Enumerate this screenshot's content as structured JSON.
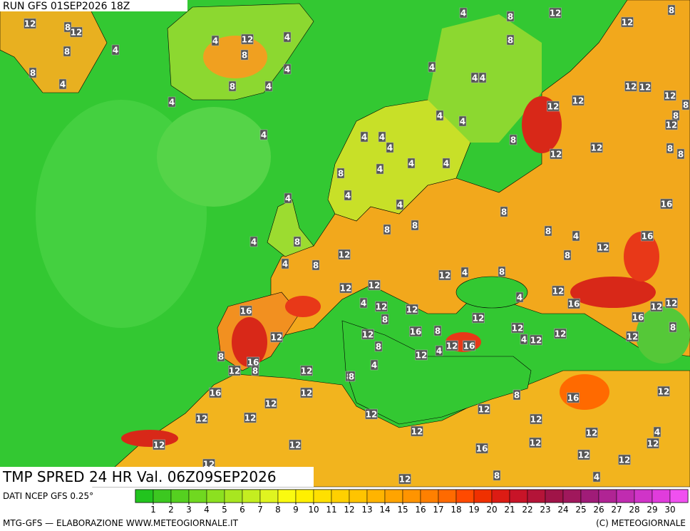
{
  "header": {
    "run": "RUN GFS 01SEP2026 18Z",
    "product": "TMP SPRED 24 HR Val. 06Z09SEP2026"
  },
  "footer": {
    "source": "DATI NCEP GFS 0.25°",
    "credit": "MTG-GFS — ELABORAZIONE WWW.METEOGIORNALE.IT",
    "copyright": "(C) METEOGIORNALE"
  },
  "legend": {
    "labels": [
      1,
      2,
      3,
      4,
      5,
      6,
      7,
      8,
      9,
      10,
      11,
      12,
      13,
      14,
      15,
      16,
      17,
      18,
      19,
      20,
      21,
      22,
      23,
      24,
      25,
      26,
      27,
      28,
      29,
      30
    ],
    "colors": [
      "#22c41e",
      "#3cc820",
      "#55d020",
      "#70d820",
      "#8ce020",
      "#a8e620",
      "#c4ee20",
      "#e0f420",
      "#fafa10",
      "#fff000",
      "#ffe000",
      "#ffd000",
      "#ffc400",
      "#ffb400",
      "#ffa400",
      "#ff9400",
      "#ff8000",
      "#ff6a00",
      "#ff4a00",
      "#f03000",
      "#dc1c14",
      "#c81428",
      "#b41438",
      "#a01448",
      "#a0185c",
      "#a01c78",
      "#b02494",
      "#c02cb0",
      "#d034c8",
      "#e03cdc",
      "#f050f0"
    ]
  },
  "map_labels": [
    12,
    8,
    12,
    8,
    4,
    8,
    4,
    4,
    12,
    4,
    8,
    4,
    8,
    4,
    4,
    4,
    8,
    12,
    8,
    12,
    8,
    4,
    4,
    4,
    12,
    12,
    12,
    8,
    8,
    12,
    12,
    12,
    4,
    4,
    8,
    4,
    4,
    4,
    4,
    12,
    12,
    8,
    8,
    8,
    4,
    4,
    4,
    4,
    4,
    4,
    8,
    16,
    8,
    4,
    8,
    8,
    8,
    4,
    16,
    12,
    12,
    8,
    4,
    8,
    12,
    4,
    8,
    12,
    12,
    12,
    12,
    12,
    4,
    16,
    16,
    16,
    4,
    12,
    12,
    8,
    12,
    12,
    16,
    8,
    12,
    12,
    12,
    12,
    12,
    8,
    12,
    8,
    16,
    4,
    8,
    16,
    8,
    8,
    12,
    12,
    4,
    4,
    8,
    16,
    12,
    16,
    12,
    8,
    12,
    12,
    12,
    12,
    12,
    12,
    12,
    4,
    12,
    12,
    16,
    12,
    12,
    12,
    12,
    8,
    4,
    12,
    12,
    12,
    12
  ]
}
